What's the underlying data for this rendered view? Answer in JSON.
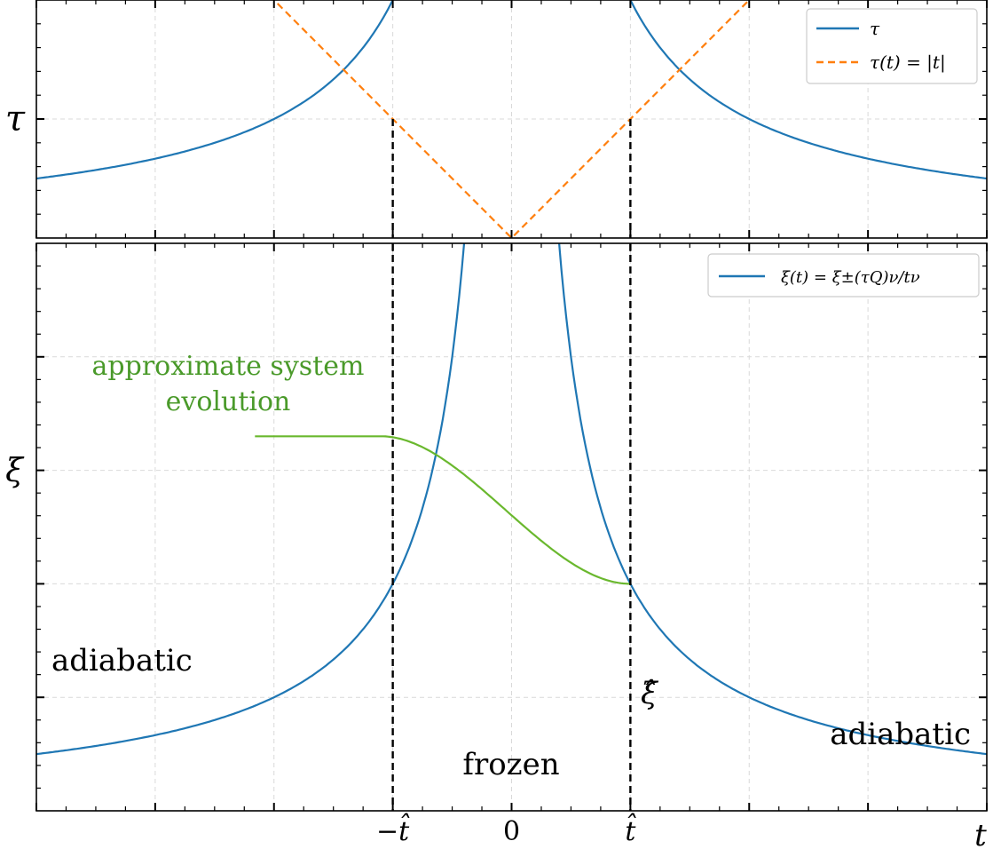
{
  "chart_data": [
    {
      "panel": "top",
      "type": "line",
      "ylabel": "τ",
      "x": [
        -2.0,
        -1.5,
        -1.0,
        -0.75,
        -0.5,
        -0.25,
        0,
        0.25,
        0.5,
        0.75,
        1.0,
        1.5,
        2.0
      ],
      "series": [
        {
          "name": "τ",
          "style": "solid",
          "color": "#1f77b4",
          "formula": "0.5/|t|"
        },
        {
          "name": "τ(t) = |t|",
          "style": "dashed",
          "color": "#ff7f0e",
          "formula": "|t|"
        }
      ],
      "xlim": [
        -2.0,
        2.0
      ],
      "ylim": [
        0,
        1.0
      ],
      "grid": true,
      "legend": "top-right",
      "ytick_labels": [
        {
          "value": 0.5,
          "label": "τ"
        }
      ],
      "vlines": [
        -0.5,
        0.5
      ]
    },
    {
      "panel": "bottom",
      "type": "line",
      "xlabel": "t",
      "ylabel": "ξ",
      "series": [
        {
          "name": "ξ(t) = ξ±(τQ)ν/tν",
          "style": "solid",
          "color": "#1f77b4",
          "formula": "0.5/|t|"
        },
        {
          "name": "",
          "style": "solid",
          "color": "#6ab82e",
          "description": "approximate system evolution"
        }
      ],
      "xlim": [
        -2.0,
        2.0
      ],
      "ylim": [
        0,
        2.5
      ],
      "grid": true,
      "legend": "top-right",
      "xtick_labels": [
        {
          "value": -0.5,
          "label": "−t̂"
        },
        {
          "value": 0,
          "label": "0"
        },
        {
          "value": 0.5,
          "label": "t̂"
        }
      ],
      "ytick_labels": [
        {
          "value": 1.5,
          "label": "ξ"
        }
      ],
      "annotations": [
        {
          "text": "approximate system",
          "color": "#4a9a2a"
        },
        {
          "text": "evolution",
          "color": "#4a9a2a"
        },
        {
          "text": "adiabatic"
        },
        {
          "text": "frozen"
        },
        {
          "text": "adiabatic"
        },
        {
          "text": "ξ̂"
        }
      ],
      "vlines": [
        -0.5,
        0.5
      ]
    }
  ]
}
